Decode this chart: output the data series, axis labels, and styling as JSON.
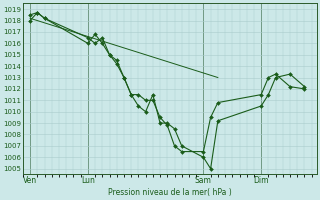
{
  "background_color": "#cce8e8",
  "grid_color": "#aacccc",
  "line_color": "#1a5c1a",
  "marker_color": "#1a5c1a",
  "title": "Pression niveau de la mer( hPa )",
  "ylabel_ticks": [
    1005,
    1006,
    1007,
    1008,
    1009,
    1010,
    1011,
    1012,
    1013,
    1014,
    1015,
    1016,
    1017,
    1018,
    1019
  ],
  "ymin": 1004.5,
  "ymax": 1019.5,
  "xtick_labels": [
    "Ven",
    "Lun",
    "Sam",
    "Dim"
  ],
  "xtick_positions": [
    0,
    24,
    72,
    96
  ],
  "vline_positions": [
    0,
    24,
    72,
    96
  ],
  "series1_x": [
    0,
    3,
    6,
    24,
    27,
    30,
    33,
    36,
    39,
    42,
    45,
    48,
    51,
    54,
    57,
    60,
    63,
    72,
    75,
    78,
    96,
    99,
    102,
    108,
    114
  ],
  "series1_y": [
    1018.0,
    1018.7,
    1018.2,
    1016.0,
    1016.8,
    1016.0,
    1015.0,
    1014.2,
    1013.0,
    1011.5,
    1010.5,
    1010.0,
    1011.5,
    1009.0,
    1009.0,
    1008.5,
    1007.0,
    1006.0,
    1005.0,
    1009.2,
    1010.5,
    1011.5,
    1013.0,
    1013.3,
    1012.2
  ],
  "series2_x": [
    0,
    3,
    6,
    24,
    27,
    30,
    33,
    36,
    39,
    42,
    45,
    48,
    51,
    54,
    57,
    60,
    63,
    72,
    75,
    78,
    96,
    99,
    102,
    108,
    114
  ],
  "series2_y": [
    1018.5,
    1018.7,
    1018.2,
    1016.5,
    1016.0,
    1016.5,
    1015.0,
    1014.5,
    1013.0,
    1011.5,
    1011.5,
    1011.0,
    1011.0,
    1009.5,
    1008.8,
    1007.0,
    1006.5,
    1006.5,
    1009.5,
    1010.8,
    1011.5,
    1013.0,
    1013.3,
    1012.2,
    1012.0
  ],
  "trend_x": [
    0,
    78
  ],
  "trend_y": [
    1018.2,
    1013.0
  ],
  "xmin": -3,
  "xmax": 119
}
